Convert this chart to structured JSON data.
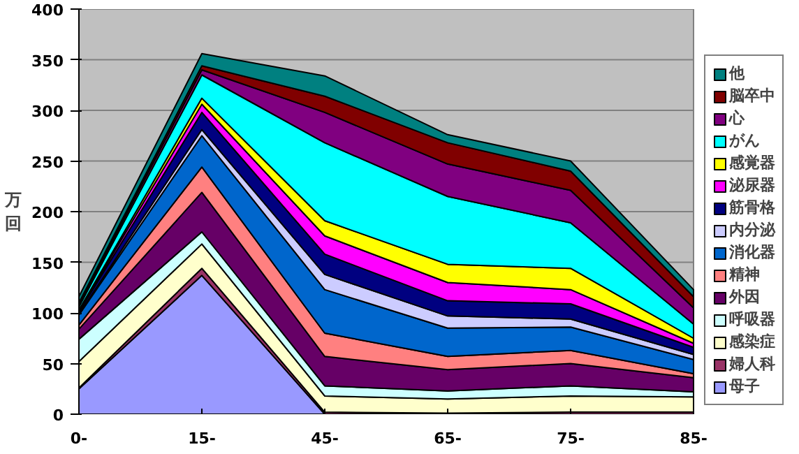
{
  "chart_data": {
    "type": "area",
    "stacked": true,
    "ylabel": "万回",
    "categories": [
      "0-",
      "15-",
      "45-",
      "65-",
      "75-",
      "85-"
    ],
    "ylim": [
      0,
      400
    ],
    "yticks": [
      0,
      50,
      100,
      150,
      200,
      250,
      300,
      350,
      400
    ],
    "grid": "y",
    "legend": "right",
    "series": [
      {
        "name": "母子",
        "color": "#9999ff",
        "values": [
          25,
          137,
          0,
          0,
          0,
          0
        ]
      },
      {
        "name": "婦人科",
        "color": "#993366",
        "values": [
          1,
          7,
          2,
          1,
          2,
          2
        ]
      },
      {
        "name": "感染症",
        "color": "#ffffcc",
        "values": [
          26,
          24,
          16,
          14,
          16,
          15
        ]
      },
      {
        "name": "呼吸器",
        "color": "#ccffff",
        "values": [
          22,
          12,
          10,
          8,
          10,
          5
        ]
      },
      {
        "name": "外因",
        "color": "#660066",
        "values": [
          10,
          39,
          29,
          21,
          22,
          14
        ]
      },
      {
        "name": "精神",
        "color": "#ff8080",
        "values": [
          4,
          25,
          23,
          13,
          13,
          4
        ]
      },
      {
        "name": "消化器",
        "color": "#0066cc",
        "values": [
          10,
          31,
          43,
          28,
          23,
          14
        ]
      },
      {
        "name": "内分泌",
        "color": "#ccccff",
        "values": [
          1,
          6,
          15,
          12,
          8,
          5
        ]
      },
      {
        "name": "筋骨格",
        "color": "#000080",
        "values": [
          2,
          17,
          20,
          15,
          15,
          7
        ]
      },
      {
        "name": "泌尿器",
        "color": "#ff00ff",
        "values": [
          1,
          8,
          18,
          18,
          14,
          4
        ]
      },
      {
        "name": "感覚器",
        "color": "#ffff00",
        "values": [
          1,
          6,
          15,
          18,
          21,
          5
        ]
      },
      {
        "name": "がん",
        "color": "#00ffff",
        "values": [
          3,
          23,
          77,
          67,
          45,
          14
        ]
      },
      {
        "name": "心",
        "color": "#800080",
        "values": [
          2,
          5,
          30,
          32,
          32,
          16
        ]
      },
      {
        "name": "脳卒中",
        "color": "#800000",
        "values": [
          2,
          4,
          16,
          21,
          19,
          11
        ]
      },
      {
        "name": "他",
        "color": "#008080",
        "values": [
          6,
          12,
          20,
          8,
          10,
          7
        ]
      }
    ]
  }
}
